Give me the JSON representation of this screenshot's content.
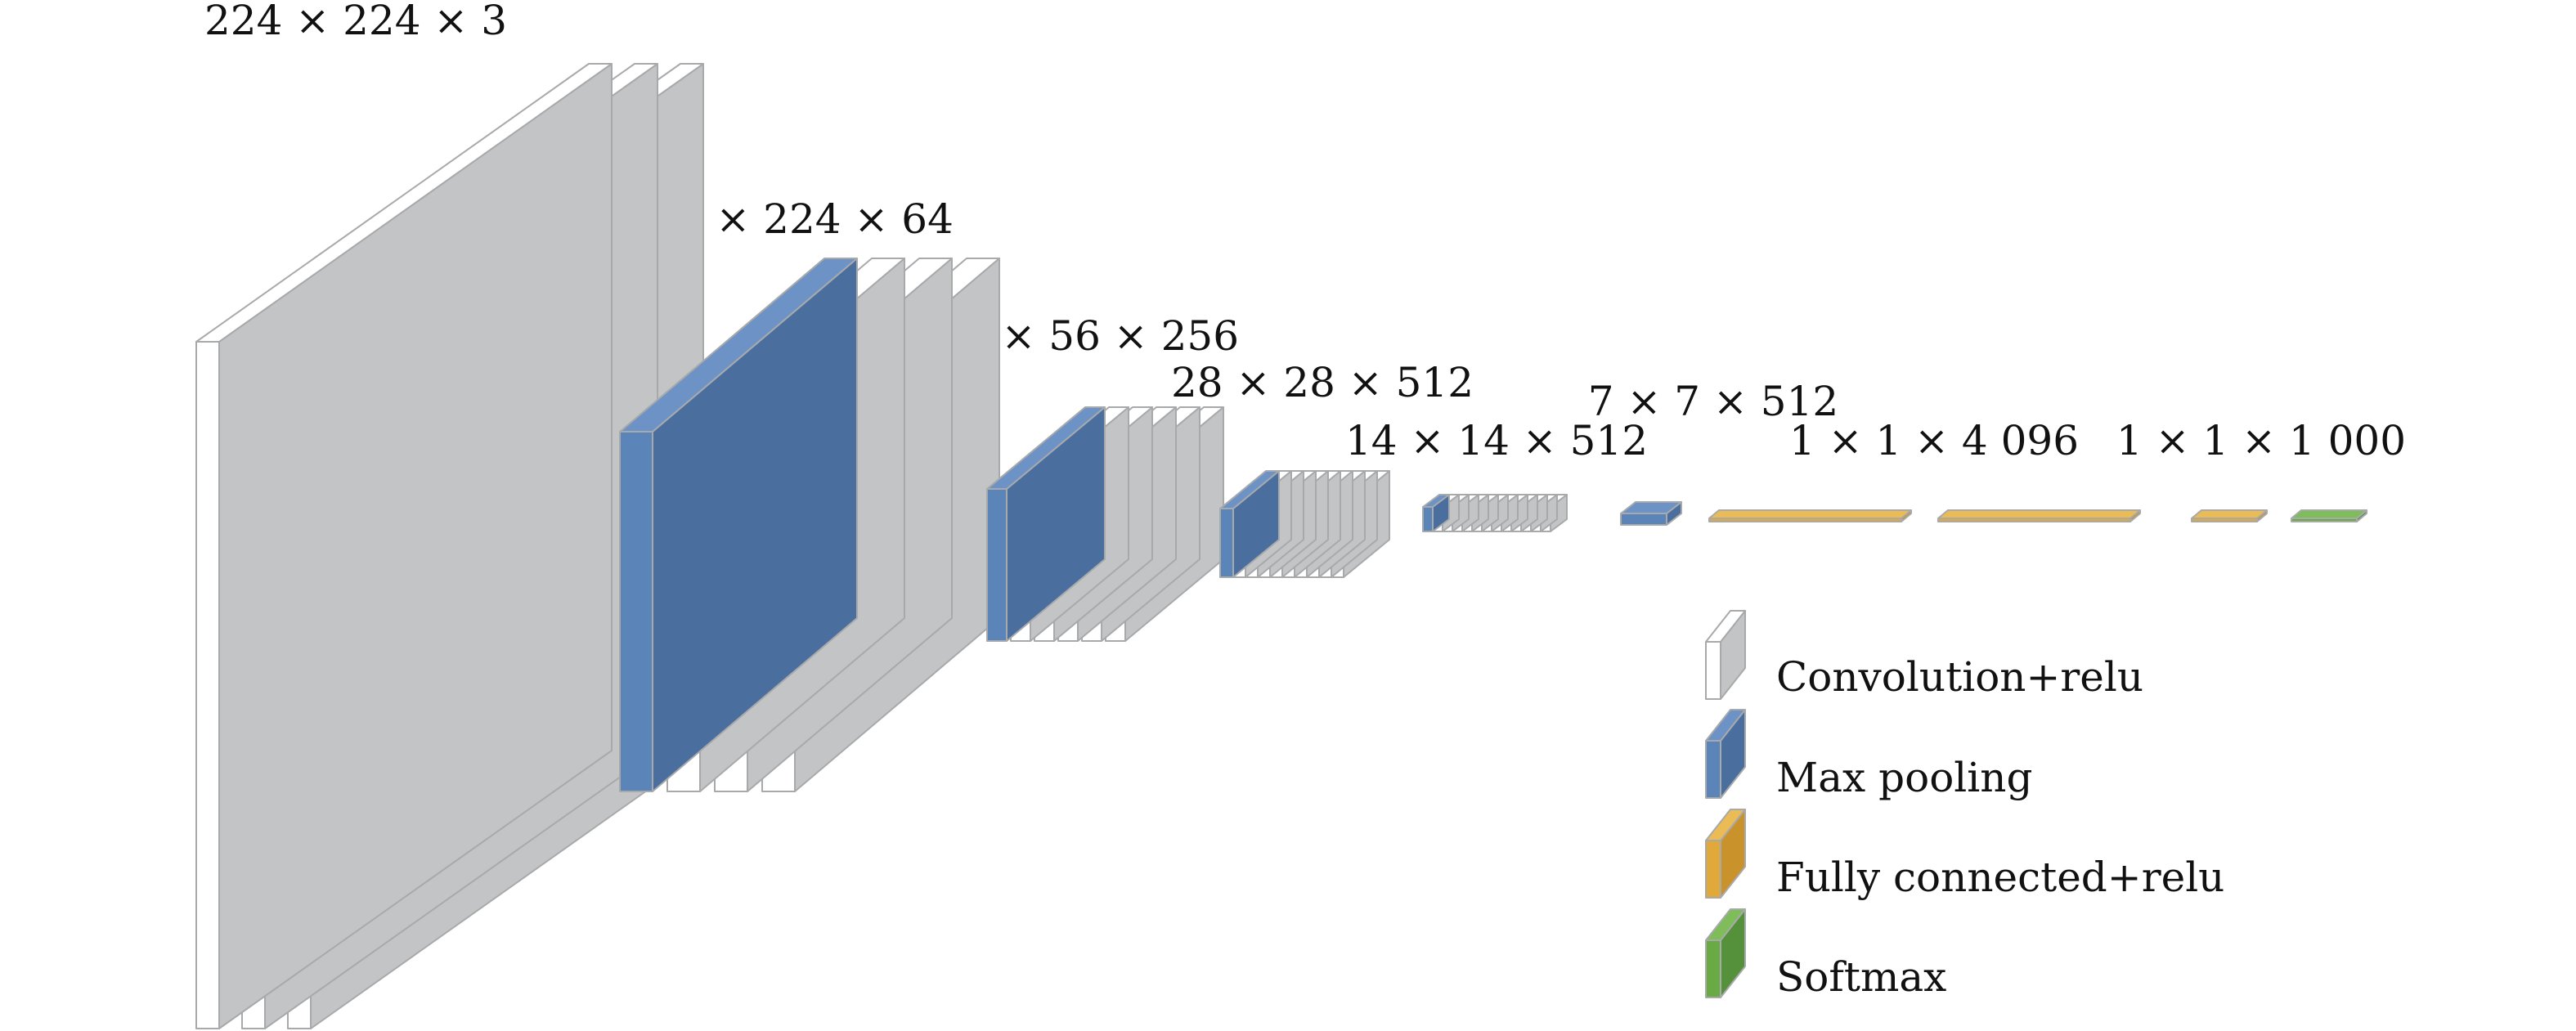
{
  "diagram": {
    "stages": [
      {
        "label": "224 × 224 × 3",
        "blocks": [
          "conv",
          "conv",
          "conv"
        ]
      },
      {
        "label": "224 × 224 × 64",
        "blocks": [
          "pool",
          "conv",
          "conv",
          "conv"
        ]
      },
      {
        "label": "56 × 56 × 256",
        "blocks": [
          "pool",
          "conv",
          "conv",
          "conv",
          "conv",
          "conv"
        ]
      },
      {
        "label": "28 × 28 × 512",
        "blocks": [
          "pool",
          "conv",
          "conv",
          "conv",
          "conv",
          "conv",
          "conv",
          "conv",
          "conv",
          "conv"
        ]
      },
      {
        "label": "14 × 14 × 512",
        "blocks": [
          "pool",
          "conv",
          "conv",
          "conv",
          "conv",
          "conv",
          "conv",
          "conv",
          "conv",
          "conv",
          "conv",
          "conv",
          "conv"
        ]
      },
      {
        "label": "7 × 7 × 512",
        "blocks": [
          "pool"
        ]
      },
      {
        "label": "1 × 1 × 4 096",
        "blocks": [
          "fc",
          "fc"
        ]
      },
      {
        "label": "1 × 1 × 1 000",
        "blocks": [
          "fc",
          "softmax"
        ]
      }
    ],
    "legend": [
      {
        "type": "conv",
        "label": "Convolution+relu"
      },
      {
        "type": "pool",
        "label": "Max pooling"
      },
      {
        "type": "fc",
        "label": "Fully connected+relu"
      },
      {
        "type": "softmax",
        "label": "Softmax"
      }
    ],
    "colors": {
      "conv_front": "#ffffff",
      "conv_side": "#c3c4c6",
      "conv_top": "#ffffff",
      "pool_front": "#5b84b9",
      "pool_side": "#4a6f9f",
      "pool_top": "#6d93c6",
      "fc_front": "#e0a93a",
      "fc_side": "#c9922a",
      "fc_top": "#ebbb55",
      "softmax_front": "#6aaa45",
      "softmax_side": "#55903a",
      "softmax_top": "#7ebd59",
      "outline": "#a8a9ab"
    }
  }
}
